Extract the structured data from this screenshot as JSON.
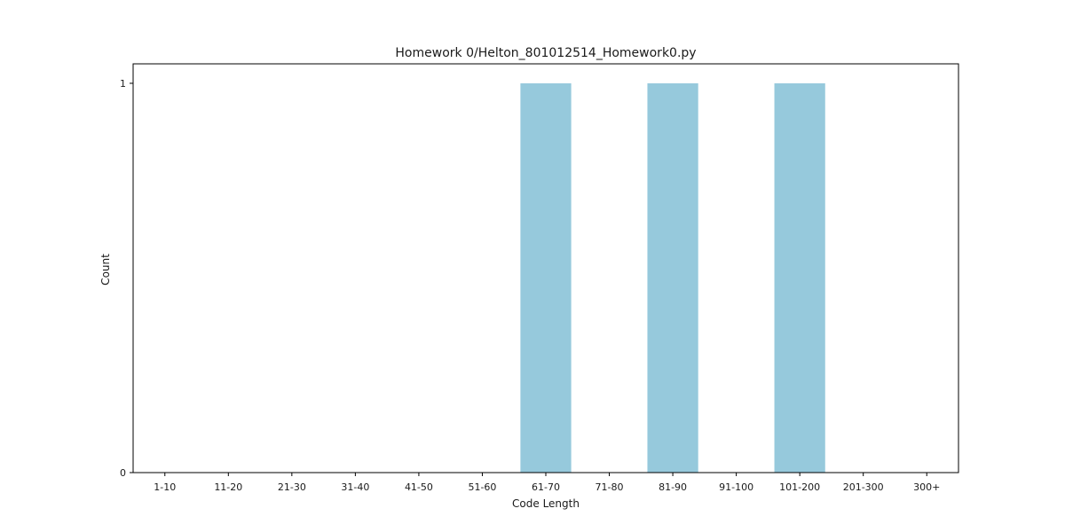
{
  "chart_data": {
    "type": "bar",
    "title": "Homework 0/Helton_801012514_Homework0.py",
    "xlabel": "Code Length",
    "ylabel": "Count",
    "categories": [
      "1-10",
      "11-20",
      "21-30",
      "31-40",
      "41-50",
      "51-60",
      "61-70",
      "71-80",
      "81-90",
      "91-100",
      "101-200",
      "201-300",
      "300+"
    ],
    "values": [
      0,
      0,
      0,
      0,
      0,
      0,
      1,
      0,
      1,
      0,
      1,
      0,
      0
    ],
    "ylim": [
      0,
      1.05
    ],
    "yticks": [
      0,
      1
    ],
    "bar_color": "#96c9dc",
    "grid": false,
    "legend": "none"
  }
}
